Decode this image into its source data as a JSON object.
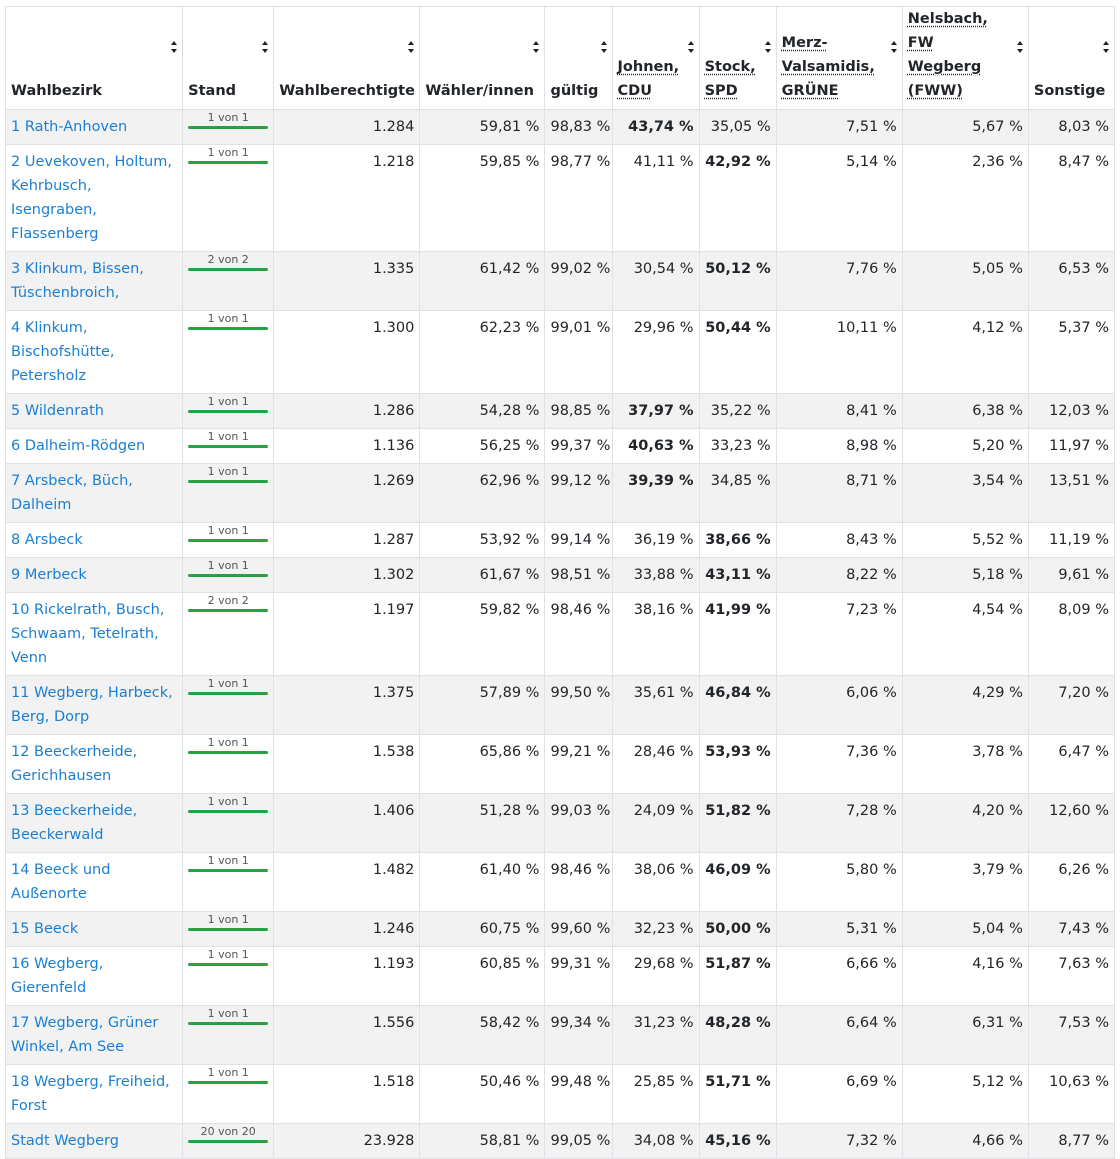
{
  "headers": {
    "wahlbezirk": "Wahlbezirk",
    "stand": "Stand",
    "wahlberechtigte": "Wahlberechtigte",
    "waehler": "Wähler/innen",
    "gueltig": "gültig",
    "cdu": "Johnen, CDU",
    "spd": "Stock, SPD",
    "gruene": "Merz-Valsamidis, GRÜNE",
    "fww": "Nelsbach, FW Wegberg (FWW)",
    "sonstige": "Sonstige"
  },
  "rows": [
    {
      "name": "1 Rath-Anhoven",
      "stand": "1 von 1",
      "wb": "1.284",
      "wh": "59,81 %",
      "g": "98,83 %",
      "cdu": "43,74 %",
      "spd": "35,05 %",
      "gruene": "7,51 %",
      "fww": "5,67 %",
      "sonst": "8,03 %",
      "bold": "cdu"
    },
    {
      "name": "2 Uevekoven, Holtum, Kehrbusch, Isengraben, Flassenberg",
      "stand": "1 von 1",
      "wb": "1.218",
      "wh": "59,85 %",
      "g": "98,77 %",
      "cdu": "41,11 %",
      "spd": "42,92 %",
      "gruene": "5,14 %",
      "fww": "2,36 %",
      "sonst": "8,47 %",
      "bold": "spd"
    },
    {
      "name": "3 Klinkum, Bissen, Tüschenbroich,",
      "stand": "2 von 2",
      "wb": "1.335",
      "wh": "61,42 %",
      "g": "99,02 %",
      "cdu": "30,54 %",
      "spd": "50,12 %",
      "gruene": "7,76 %",
      "fww": "5,05 %",
      "sonst": "6,53 %",
      "bold": "spd"
    },
    {
      "name": "4 Klinkum, Bischofshütte, Petersholz",
      "stand": "1 von 1",
      "wb": "1.300",
      "wh": "62,23 %",
      "g": "99,01 %",
      "cdu": "29,96 %",
      "spd": "50,44 %",
      "gruene": "10,11 %",
      "fww": "4,12 %",
      "sonst": "5,37 %",
      "bold": "spd"
    },
    {
      "name": "5 Wildenrath",
      "stand": "1 von 1",
      "wb": "1.286",
      "wh": "54,28 %",
      "g": "98,85 %",
      "cdu": "37,97 %",
      "spd": "35,22 %",
      "gruene": "8,41 %",
      "fww": "6,38 %",
      "sonst": "12,03 %",
      "bold": "cdu"
    },
    {
      "name": "6 Dalheim-Rödgen",
      "stand": "1 von 1",
      "wb": "1.136",
      "wh": "56,25 %",
      "g": "99,37 %",
      "cdu": "40,63 %",
      "spd": "33,23 %",
      "gruene": "8,98 %",
      "fww": "5,20 %",
      "sonst": "11,97 %",
      "bold": "cdu"
    },
    {
      "name": "7 Arsbeck, Büch, Dalheim",
      "stand": "1 von 1",
      "wb": "1.269",
      "wh": "62,96 %",
      "g": "99,12 %",
      "cdu": "39,39 %",
      "spd": "34,85 %",
      "gruene": "8,71 %",
      "fww": "3,54 %",
      "sonst": "13,51 %",
      "bold": "cdu"
    },
    {
      "name": "8 Arsbeck",
      "stand": "1 von 1",
      "wb": "1.287",
      "wh": "53,92 %",
      "g": "99,14 %",
      "cdu": "36,19 %",
      "spd": "38,66 %",
      "gruene": "8,43 %",
      "fww": "5,52 %",
      "sonst": "11,19 %",
      "bold": "spd"
    },
    {
      "name": "9 Merbeck",
      "stand": "1 von 1",
      "wb": "1.302",
      "wh": "61,67 %",
      "g": "98,51 %",
      "cdu": "33,88 %",
      "spd": "43,11 %",
      "gruene": "8,22 %",
      "fww": "5,18 %",
      "sonst": "9,61 %",
      "bold": "spd"
    },
    {
      "name": "10 Rickelrath, Busch, Schwaam, Tetelrath, Venn",
      "stand": "2 von 2",
      "wb": "1.197",
      "wh": "59,82 %",
      "g": "98,46 %",
      "cdu": "38,16 %",
      "spd": "41,99 %",
      "gruene": "7,23 %",
      "fww": "4,54 %",
      "sonst": "8,09 %",
      "bold": "spd"
    },
    {
      "name": "11 Wegberg, Harbeck, Berg, Dorp",
      "stand": "1 von 1",
      "wb": "1.375",
      "wh": "57,89 %",
      "g": "99,50 %",
      "cdu": "35,61 %",
      "spd": "46,84 %",
      "gruene": "6,06 %",
      "fww": "4,29 %",
      "sonst": "7,20 %",
      "bold": "spd"
    },
    {
      "name": "12 Beeckerheide, Gerichhausen",
      "stand": "1 von 1",
      "wb": "1.538",
      "wh": "65,86 %",
      "g": "99,21 %",
      "cdu": "28,46 %",
      "spd": "53,93 %",
      "gruene": "7,36 %",
      "fww": "3,78 %",
      "sonst": "6,47 %",
      "bold": "spd"
    },
    {
      "name": "13 Beeckerheide, Beeckerwald",
      "stand": "1 von 1",
      "wb": "1.406",
      "wh": "51,28 %",
      "g": "99,03 %",
      "cdu": "24,09 %",
      "spd": "51,82 %",
      "gruene": "7,28 %",
      "fww": "4,20 %",
      "sonst": "12,60 %",
      "bold": "spd"
    },
    {
      "name": "14 Beeck und Außenorte",
      "stand": "1 von 1",
      "wb": "1.482",
      "wh": "61,40 %",
      "g": "98,46 %",
      "cdu": "38,06 %",
      "spd": "46,09 %",
      "gruene": "5,80 %",
      "fww": "3,79 %",
      "sonst": "6,26 %",
      "bold": "spd"
    },
    {
      "name": "15 Beeck",
      "stand": "1 von 1",
      "wb": "1.246",
      "wh": "60,75 %",
      "g": "99,60 %",
      "cdu": "32,23 %",
      "spd": "50,00 %",
      "gruene": "5,31 %",
      "fww": "5,04 %",
      "sonst": "7,43 %",
      "bold": "spd"
    },
    {
      "name": "16 Wegberg, Gierenfeld",
      "stand": "1 von 1",
      "wb": "1.193",
      "wh": "60,85 %",
      "g": "99,31 %",
      "cdu": "29,68 %",
      "spd": "51,87 %",
      "gruene": "6,66 %",
      "fww": "4,16 %",
      "sonst": "7,63 %",
      "bold": "spd"
    },
    {
      "name": "17 Wegberg, Grüner Winkel, Am See",
      "stand": "1 von 1",
      "wb": "1.556",
      "wh": "58,42 %",
      "g": "99,34 %",
      "cdu": "31,23 %",
      "spd": "48,28 %",
      "gruene": "6,64 %",
      "fww": "6,31 %",
      "sonst": "7,53 %",
      "bold": "spd"
    },
    {
      "name": "18 Wegberg, Freiheid, Forst",
      "stand": "1 von 1",
      "wb": "1.518",
      "wh": "50,46 %",
      "g": "99,48 %",
      "cdu": "25,85 %",
      "spd": "51,71 %",
      "gruene": "6,69 %",
      "fww": "5,12 %",
      "sonst": "10,63 %",
      "bold": "spd"
    },
    {
      "name": "Stadt Wegberg",
      "stand": "20 von 20",
      "wb": "23.928",
      "wh": "58,81 %",
      "g": "99,05 %",
      "cdu": "34,08 %",
      "spd": "45,16 %",
      "gruene": "7,32 %",
      "fww": "4,66 %",
      "sonst": "8,77 %",
      "bold": "spd"
    }
  ]
}
